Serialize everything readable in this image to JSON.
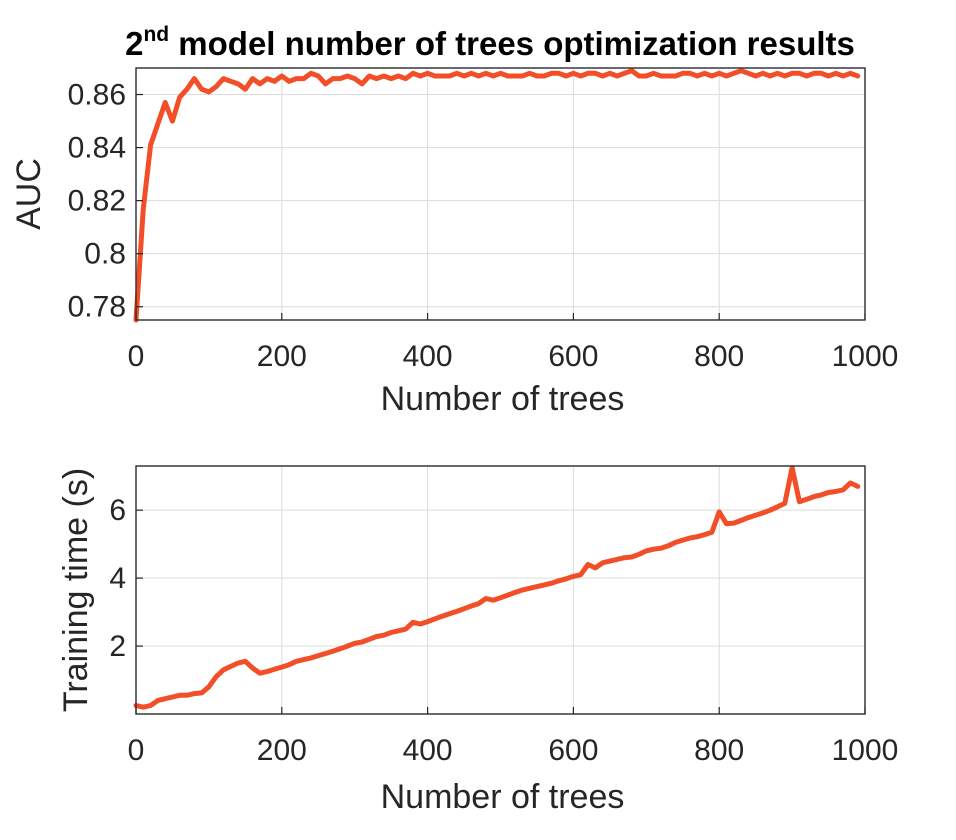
{
  "figure": {
    "title_main": "2",
    "title_sup": "nd",
    "title_rest": " model number of trees optimization results"
  },
  "colors": {
    "series": "#f24f28"
  },
  "chart_data": [
    {
      "type": "line",
      "xlabel": "Number of trees",
      "ylabel": "AUC",
      "xlim": [
        0,
        1000
      ],
      "ylim": [
        0.775,
        0.87
      ],
      "xticks": [
        0,
        200,
        400,
        600,
        800,
        1000
      ],
      "xtick_labels": [
        "0",
        "200",
        "400",
        "600",
        "800",
        "1000"
      ],
      "yticks": [
        0.78,
        0.8,
        0.82,
        0.84,
        0.86
      ],
      "ytick_labels": [
        "0.78",
        "0.8",
        "0.82",
        "0.84",
        "0.86"
      ],
      "grid": true,
      "series": [
        {
          "x": [
            0,
            10,
            20,
            30,
            40,
            50,
            60,
            70,
            80,
            90,
            100,
            110,
            120,
            130,
            140,
            150,
            160,
            170,
            180,
            190,
            200,
            210,
            220,
            230,
            240,
            250,
            260,
            270,
            280,
            290,
            300,
            310,
            320,
            330,
            340,
            350,
            360,
            370,
            380,
            390,
            400,
            410,
            420,
            430,
            440,
            450,
            460,
            470,
            480,
            490,
            500,
            510,
            520,
            530,
            540,
            550,
            560,
            570,
            580,
            590,
            600,
            610,
            620,
            630,
            640,
            650,
            660,
            670,
            680,
            690,
            700,
            710,
            720,
            730,
            740,
            750,
            760,
            770,
            780,
            790,
            800,
            810,
            820,
            830,
            840,
            850,
            860,
            870,
            880,
            890,
            900,
            910,
            920,
            930,
            940,
            950,
            960,
            970,
            980,
            990
          ],
          "values": [
            0.775,
            0.817,
            0.841,
            0.849,
            0.857,
            0.85,
            0.859,
            0.862,
            0.866,
            0.862,
            0.861,
            0.863,
            0.866,
            0.865,
            0.864,
            0.862,
            0.866,
            0.864,
            0.866,
            0.865,
            0.867,
            0.865,
            0.866,
            0.866,
            0.868,
            0.867,
            0.864,
            0.866,
            0.866,
            0.867,
            0.866,
            0.864,
            0.867,
            0.866,
            0.867,
            0.866,
            0.867,
            0.866,
            0.868,
            0.867,
            0.868,
            0.867,
            0.867,
            0.867,
            0.868,
            0.867,
            0.868,
            0.867,
            0.868,
            0.867,
            0.868,
            0.867,
            0.867,
            0.867,
            0.868,
            0.867,
            0.867,
            0.868,
            0.868,
            0.867,
            0.868,
            0.867,
            0.868,
            0.868,
            0.867,
            0.868,
            0.867,
            0.868,
            0.869,
            0.867,
            0.867,
            0.868,
            0.867,
            0.867,
            0.867,
            0.868,
            0.868,
            0.867,
            0.868,
            0.867,
            0.868,
            0.867,
            0.868,
            0.869,
            0.868,
            0.867,
            0.868,
            0.867,
            0.868,
            0.867,
            0.868,
            0.868,
            0.867,
            0.868,
            0.868,
            0.867,
            0.868,
            0.867,
            0.868,
            0.867
          ]
        }
      ]
    },
    {
      "type": "line",
      "xlabel": "Number of trees",
      "ylabel": "Training time (s)",
      "xlim": [
        0,
        1000
      ],
      "ylim": [
        0,
        7.3
      ],
      "xticks": [
        0,
        200,
        400,
        600,
        800,
        1000
      ],
      "xtick_labels": [
        "0",
        "200",
        "400",
        "600",
        "800",
        "1000"
      ],
      "yticks": [
        2,
        4,
        6
      ],
      "ytick_labels": [
        "2",
        "4",
        "6"
      ],
      "grid": true,
      "series": [
        {
          "x": [
            0,
            10,
            20,
            30,
            40,
            50,
            60,
            70,
            80,
            90,
            100,
            110,
            120,
            130,
            140,
            150,
            160,
            170,
            180,
            190,
            200,
            210,
            220,
            230,
            240,
            250,
            260,
            270,
            280,
            290,
            300,
            310,
            320,
            330,
            340,
            350,
            360,
            370,
            380,
            390,
            400,
            410,
            420,
            430,
            440,
            450,
            460,
            470,
            480,
            490,
            500,
            510,
            520,
            530,
            540,
            550,
            560,
            570,
            580,
            590,
            600,
            610,
            620,
            630,
            640,
            650,
            660,
            670,
            680,
            690,
            700,
            710,
            720,
            730,
            740,
            750,
            760,
            770,
            780,
            790,
            800,
            810,
            820,
            830,
            840,
            850,
            860,
            870,
            880,
            890,
            900,
            910,
            920,
            930,
            940,
            950,
            960,
            970,
            980,
            990
          ],
          "values": [
            0.25,
            0.2,
            0.25,
            0.4,
            0.45,
            0.5,
            0.55,
            0.55,
            0.6,
            0.62,
            0.8,
            1.1,
            1.3,
            1.4,
            1.5,
            1.55,
            1.35,
            1.2,
            1.25,
            1.32,
            1.38,
            1.45,
            1.55,
            1.6,
            1.65,
            1.72,
            1.78,
            1.85,
            1.92,
            2.0,
            2.08,
            2.12,
            2.2,
            2.28,
            2.32,
            2.4,
            2.45,
            2.5,
            2.7,
            2.65,
            2.72,
            2.8,
            2.88,
            2.95,
            3.02,
            3.1,
            3.18,
            3.25,
            3.4,
            3.35,
            3.42,
            3.5,
            3.58,
            3.65,
            3.7,
            3.75,
            3.8,
            3.85,
            3.92,
            3.98,
            4.05,
            4.1,
            4.4,
            4.3,
            4.45,
            4.5,
            4.55,
            4.6,
            4.62,
            4.7,
            4.8,
            4.85,
            4.88,
            4.95,
            5.05,
            5.12,
            5.18,
            5.22,
            5.28,
            5.35,
            5.95,
            5.6,
            5.62,
            5.7,
            5.78,
            5.85,
            5.92,
            6.0,
            6.1,
            6.2,
            7.25,
            6.25,
            6.32,
            6.4,
            6.45,
            6.52,
            6.55,
            6.6,
            6.8,
            6.7
          ]
        }
      ]
    }
  ]
}
